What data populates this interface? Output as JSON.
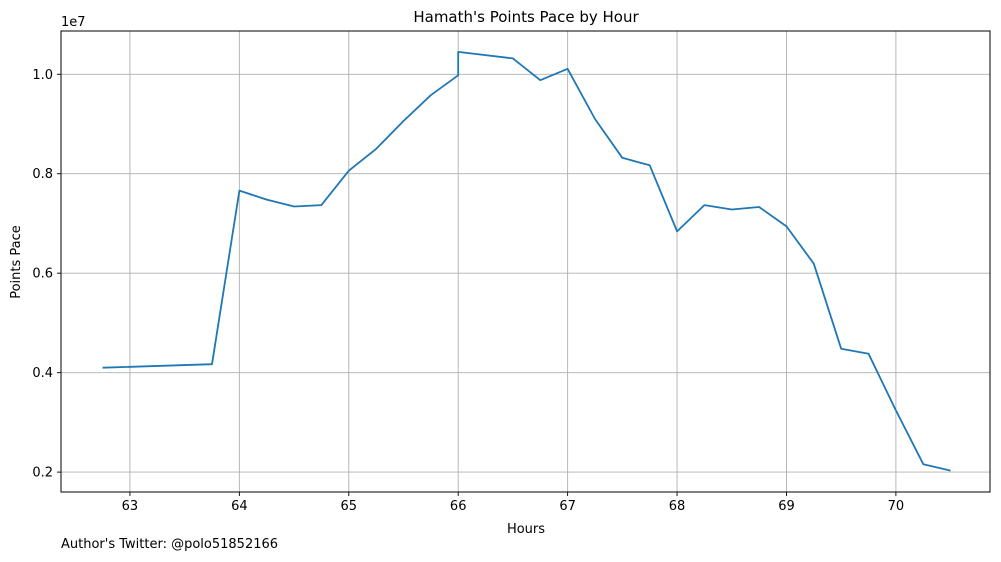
{
  "chart_data": {
    "type": "line",
    "title": "Hamath's Points Pace by Hour",
    "xlabel": "Hours",
    "ylabel": "Points Pace",
    "y_offset_label": "1e7",
    "xlim": [
      62.37,
      70.86
    ],
    "ylim": [
      1600000.0,
      10870000.0
    ],
    "x_ticks": [
      63,
      64,
      65,
      66,
      67,
      68,
      69,
      70
    ],
    "x_tick_labels": [
      "63",
      "64",
      "65",
      "66",
      "67",
      "68",
      "69",
      "70"
    ],
    "y_ticks": [
      2000000,
      4000000,
      6000000,
      8000000,
      10000000
    ],
    "y_tick_labels": [
      "0.2",
      "0.4",
      "0.6",
      "0.8",
      "1.0"
    ],
    "grid": true,
    "line_color": "#1f77b4",
    "series": [
      {
        "x": [
          62.75,
          63.75,
          64.0,
          64.25,
          64.5,
          64.75,
          65.0,
          65.25,
          65.5,
          65.75,
          66.0,
          66.0,
          66.5,
          66.75,
          67.0,
          67.25,
          67.5,
          67.75,
          68.0,
          68.25,
          68.5,
          68.75,
          69.0,
          69.25,
          69.5,
          69.75,
          70.0,
          70.25,
          70.5
        ],
        "y": [
          4100000,
          4170000,
          7660000,
          7480000,
          7340000,
          7370000,
          8060000,
          8500000,
          9060000,
          9580000,
          9980000,
          10450000,
          10320000,
          9880000,
          10110000,
          9100000,
          8320000,
          8170000,
          6840000,
          7370000,
          7280000,
          7330000,
          6940000,
          6190000,
          4480000,
          4380000,
          3240000,
          2160000,
          2030000
        ]
      }
    ]
  },
  "footer": {
    "note": "Author's Twitter: @polo51852166"
  }
}
